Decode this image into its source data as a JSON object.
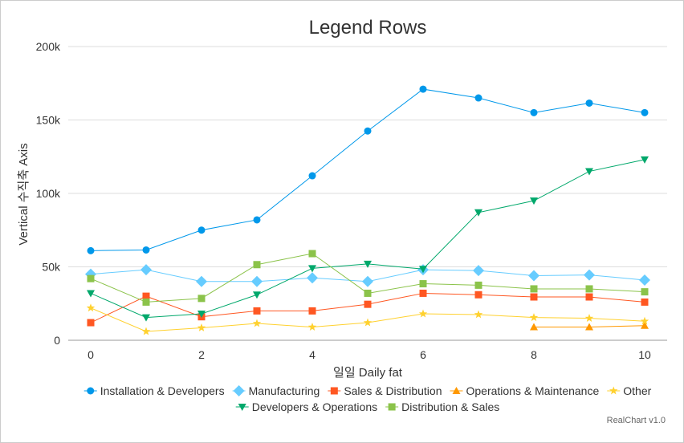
{
  "chart_data": {
    "type": "line",
    "title": "Legend Rows",
    "xlabel": "일일 Daily fat",
    "ylabel": "Vertical 수직축 Axis",
    "x": [
      0,
      1,
      2,
      3,
      4,
      5,
      6,
      7,
      8,
      9,
      10
    ],
    "xlim": [
      0,
      10
    ],
    "ylim": [
      0,
      200000
    ],
    "x_ticks": [
      "0",
      "2",
      "4",
      "6",
      "8",
      "10"
    ],
    "x_tick_values": [
      0,
      2,
      4,
      6,
      8,
      10
    ],
    "y_ticks": [
      "0",
      "50k",
      "100k",
      "150k",
      "200k"
    ],
    "y_tick_values": [
      0,
      50000,
      100000,
      150000,
      200000
    ],
    "grid": "horizontal",
    "legend_position": "bottom",
    "credit": "RealChart v1.0",
    "series": [
      {
        "name": "Installation & Developers",
        "color": "#0098ea",
        "marker": "circle",
        "values": [
          61000,
          61500,
          75000,
          82000,
          112000,
          142500,
          171000,
          165000,
          155000,
          161500,
          155000
        ]
      },
      {
        "name": "Manufacturing",
        "color": "#66ccff",
        "marker": "diamond",
        "values": [
          45000,
          48000,
          40000,
          40000,
          42500,
          40000,
          48000,
          47500,
          44000,
          44500,
          41000
        ]
      },
      {
        "name": "Sales & Distribution",
        "color": "#ff5722",
        "marker": "square",
        "values": [
          12000,
          30000,
          16000,
          20000,
          20000,
          24500,
          32000,
          31000,
          29500,
          29500,
          26000
        ]
      },
      {
        "name": "Operations & Maintenance",
        "color": "#ff9800",
        "marker": "triangle-up",
        "values": [
          null,
          null,
          null,
          null,
          null,
          null,
          null,
          null,
          9000,
          9000,
          10000
        ]
      },
      {
        "name": "Other",
        "color": "#ffd12f",
        "marker": "star",
        "values": [
          22000,
          6000,
          8500,
          11500,
          9000,
          12000,
          18000,
          17500,
          15500,
          15000,
          13000
        ]
      },
      {
        "name": "Developers & Operations",
        "color": "#00a86b",
        "marker": "triangle-down",
        "values": [
          32000,
          15500,
          18000,
          31000,
          49000,
          52000,
          48500,
          87000,
          95000,
          115000,
          123000
        ]
      },
      {
        "name": "Distribution & Sales",
        "color": "#8bc34a",
        "marker": "square",
        "values": [
          42000,
          26000,
          28500,
          51500,
          59000,
          32000,
          38500,
          37500,
          35000,
          35000,
          33000
        ]
      }
    ]
  }
}
